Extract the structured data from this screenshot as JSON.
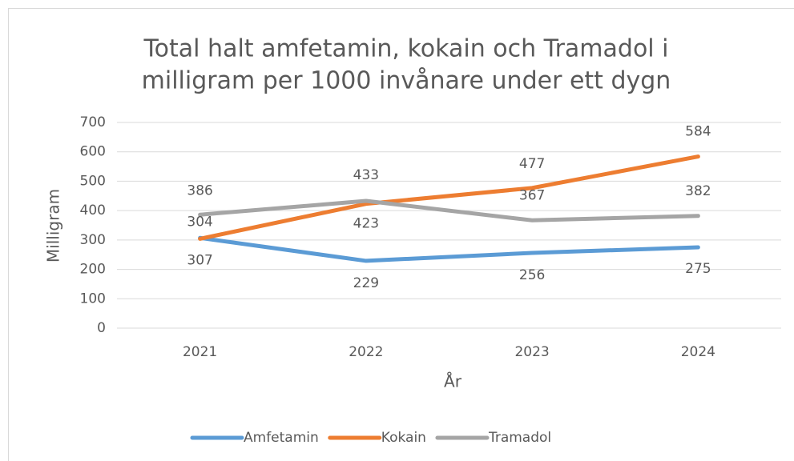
{
  "chart_data": {
    "type": "line",
    "title": [
      "Total halt amfetamin, kokain och Tramadol i",
      "milligram per 1000 invånare under ett dygn"
    ],
    "x_label": "År",
    "y_label": "Milligram",
    "categories": [
      "2021",
      "2022",
      "2023",
      "2024"
    ],
    "series": [
      {
        "name": "Amfetamin",
        "color": "#5b9bd5",
        "values": [
          307,
          229,
          256,
          275
        ]
      },
      {
        "name": "Kokain",
        "color": "#ed7d31",
        "values": [
          304,
          423,
          477,
          584
        ]
      },
      {
        "name": "Tramadol",
        "color": "#a5a5a5",
        "values": [
          386,
          433,
          367,
          382
        ]
      }
    ],
    "ylim": [
      0,
      700
    ],
    "yticks": [
      0,
      100,
      200,
      300,
      400,
      500,
      600,
      700
    ],
    "grid": true,
    "legend": "bottom"
  }
}
